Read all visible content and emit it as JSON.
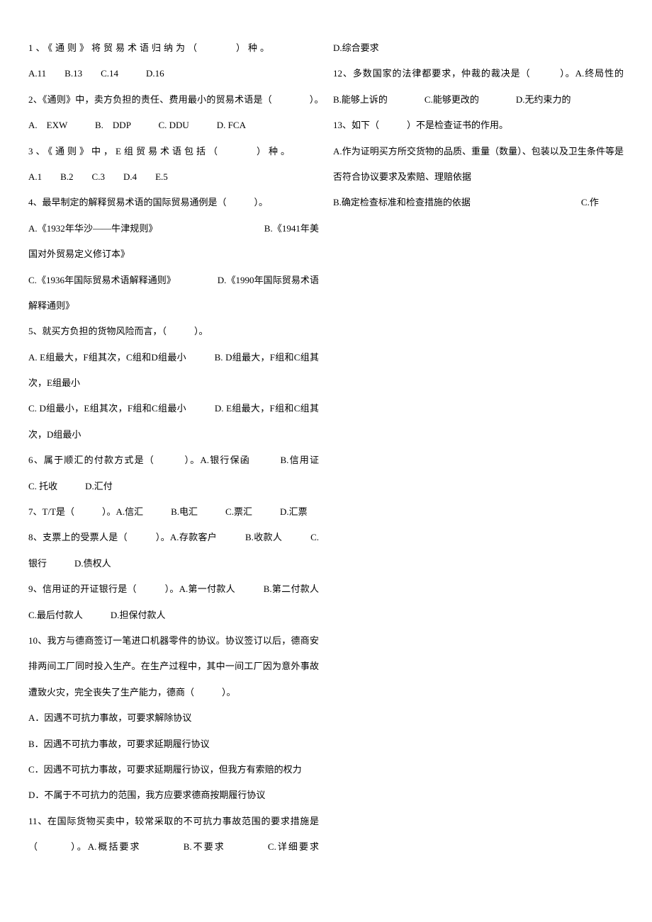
{
  "q1": {
    "text": "1、《通则》将贸易术语归纳为（　　　）种。",
    "opts": "A.11　　B.13　　C.14　　　D.16"
  },
  "q2": {
    "text": "2、《通则》中，卖方负担的责任、费用最小的贸易术语是（　　　　）。　A.　EXW　　　B.　DDP　　　C. DDU　　　D. FCA"
  },
  "q3": {
    "text": "3、《通则》中，E组贸易术语包括（　　　）种。",
    "opts": "A.1　　B.2　　C.3　　D.4　　E.5"
  },
  "q4": {
    "text": "4、最早制定的解释贸易术语的国际贸易通例是（　　　）。",
    "a": "A.《1932年华沙——牛津规则》　　　　　　　　　　　　B.《1941年美国对外贸易定义修订本》",
    "c": "C.《1936年国际贸易术语解释通则》　　　　　D.《1990年国际贸易术语解释通则》"
  },
  "q5": {
    "text": "5、就买方负担的货物风险而言，（　　　）。",
    "a": "A. E组最大，F组其次，C组和D组最小　　　B. D组最大，F组和C组其次，E组最小",
    "c": "C. D组最小，E组其次，F组和C组最小　　　D. E组最大，F组和C组其次，D组最小"
  },
  "q6": {
    "text": "6、属于顺汇的付款方式是（　　　）。A.银行保函　　　B.信用证　　　C. 托收　　　D.汇付"
  },
  "q7": {
    "text": "7、T/T是（　　　）。A.信汇　　　B.电汇　　　C.票汇　　　D.汇票"
  },
  "q8": {
    "text": "8、支票上的受票人是（　　　）。A.存款客户　　　B.收款人　　　C.银行　　　D.债权人"
  },
  "q9": {
    "text": "9、信用证的开证银行是（　　　）。A.第一付款人　　　B.第二付款人　　　C.最后付款人　　　D.担保付款人"
  },
  "q10": {
    "text": "10、我方与德商签订一笔进口机器零件的协议。协议签订以后，德商安排两间工厂同时投入生产。在生产过程中，其中一间工厂因为意外事故遭致火灾，完全丧失了生产能力，德商（　　　）。",
    "a": "A．因遇不可抗力事故，可要求解除协议",
    "b": "B．因遇不可抗力事故，可要求延期履行协议",
    "c": "C．因遇不可抗力事故，可要求延期履行协议，但我方有索赔的权力",
    "d": "D．不属于不可抗力的范围，我方应要求德商按期履行协议"
  },
  "q11": {
    "text": "11、在国际货物买卖中，较常采取的不可抗力事故范围的要求措施是（　　　）。A.概括要求　　　　B.不要求　　　　C.详细要求　　　　D.综合要求"
  },
  "q12": {
    "text": "12、多数国家的法律都要求，仲裁的裁决是（　　　）。A.终局性的　　　　B.能够上诉的　　　　C.能够更改的　　　　D.无约束力的"
  },
  "q13": {
    "text": "13、如下（　　　）不是检查证书的作用。",
    "a": "A.作为证明买方所交货物的品质、重量（数量）、包装以及卫生条件等是否符合协议要求及索赔、理赔依据",
    "b": "B.确定检查标准和检查措施的依据　　　　　　　　　　　　C.作"
  }
}
